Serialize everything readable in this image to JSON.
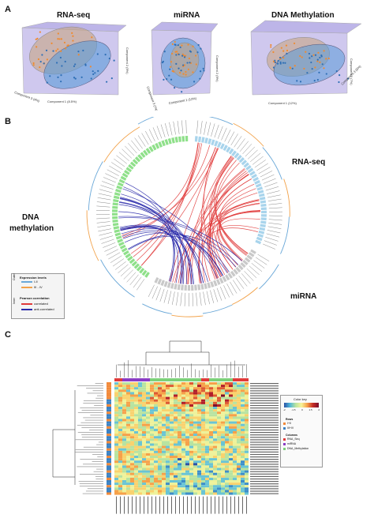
{
  "panelA": {
    "label": "A",
    "plots": [
      {
        "title": "RNA-seq",
        "xlabel": "Component 1 (8.5%)",
        "ylabel": "Component 2 (5%)",
        "zlabel": "Component 3 (4%)"
      },
      {
        "title": "miRNA",
        "xlabel": "Component 1 (12%)",
        "ylabel": "Component 2 (9%)",
        "zlabel": "Component 3 (7%)"
      },
      {
        "title": "DNA Methylation",
        "xlabel": "Component 1 (12%)",
        "ylabel": "Component 2 (7%)",
        "zlabel": "Component 3 (5%)"
      }
    ]
  },
  "panelB": {
    "label": "B",
    "rnaseq_label": "RNA-seq",
    "mirna_label": "miRNA",
    "dna_label_line1": "DNA",
    "dna_label_line2": "methylation",
    "outer_tag": "Outer",
    "inner_tag": "Inner",
    "legend_expr_title": "Expression levels",
    "legend_expr_items": [
      "I-II",
      "III - IV"
    ],
    "legend_corr_title": "Pearson correlation",
    "legend_corr_items": [
      "correlated",
      "anti-correlated"
    ],
    "colors": {
      "rnaseq": "#a8d4ec",
      "mirna": "#c9c9c9",
      "dna": "#8fe08a",
      "orange": "#f2a24a",
      "blue": "#6aa8d8",
      "red": "#e03a3a",
      "darkblue": "#2a2aaa"
    }
  },
  "panelC": {
    "label": "C",
    "legend": {
      "title": "Color key",
      "scale_ticks": [
        "-2",
        "-1.5",
        "0",
        "1.5",
        "2"
      ],
      "rows_title": "Rows",
      "rows_items": [
        "I+II",
        "III+IV"
      ],
      "cols_title": "Columns",
      "cols_items": [
        "RNA_Seq",
        "miRNA",
        "DNA_Methylation"
      ]
    },
    "colors": {
      "rows_a": "#f28a3b",
      "rows_b": "#3b82c4",
      "col_rna": "#e03a3a",
      "col_mirna": "#8a3cc4",
      "col_dna": "#7dd17a"
    }
  }
}
